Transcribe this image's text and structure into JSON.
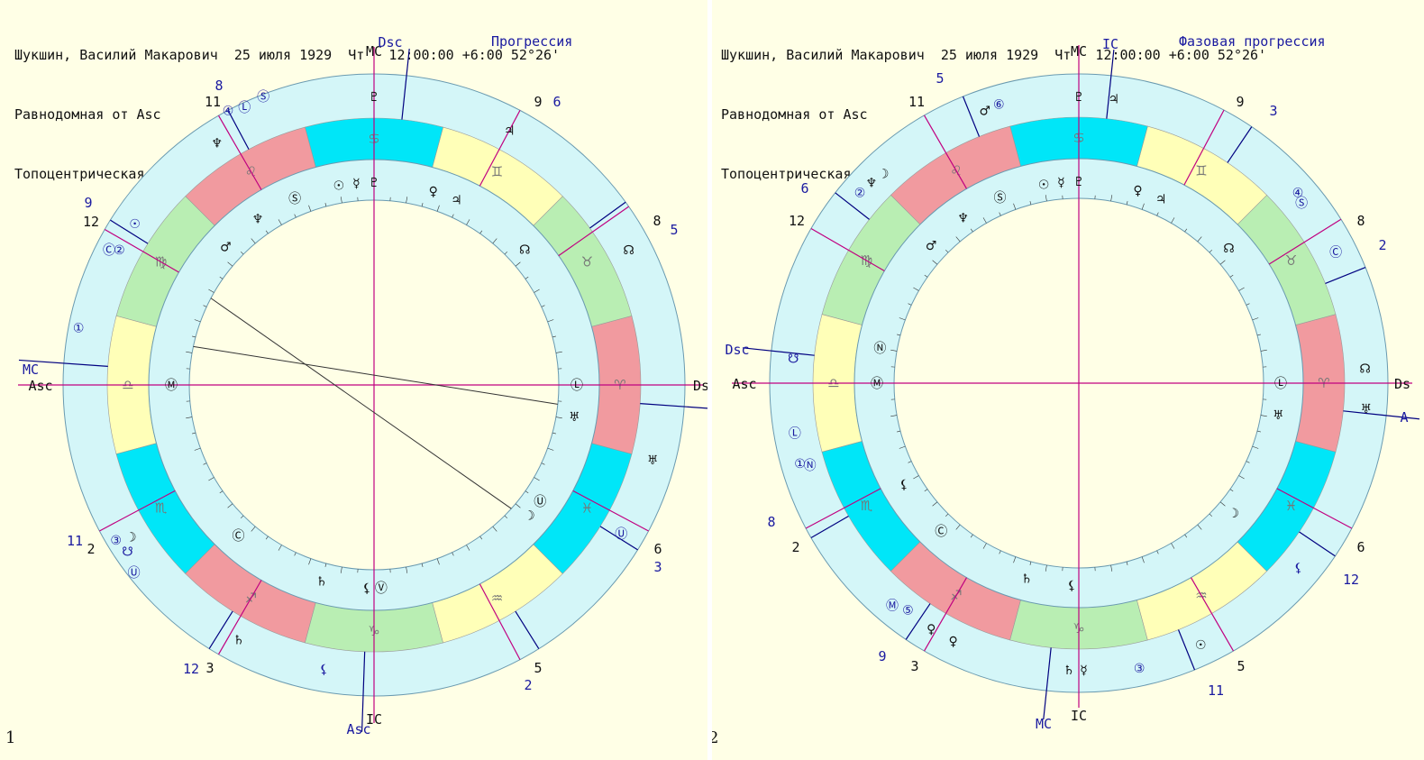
{
  "colors": {
    "background": "#ffffe6",
    "ring": "#d4f6f8",
    "fire": "#f19a9f",
    "earth": "#b9eeb3",
    "air": "#ffffb8",
    "water": "#00e6f8",
    "line": "#000080",
    "house": "#c00080",
    "label_black": "#111111",
    "label_blue": "#1a1aa0"
  },
  "panels": [
    {
      "number": "1",
      "title": "Прогрессия",
      "header": {
        "line1": "Шукшин, Василий Макарович  25 июля 1929  Чт   12:00:00 +6:00 52°26'",
        "line2": "Равнодомная от Asc",
        "line3": "Топоцентрическая"
      },
      "zodiac_signs": [
        "♈",
        "♉",
        "♊",
        "♋",
        "♌",
        "♍",
        "♎",
        "♏",
        "♐",
        "♑",
        "♒",
        "♓"
      ],
      "sign_order_from_aries": "fire earth air water",
      "angle_labels": [
        "Asc",
        "Ds",
        "MC",
        "IC",
        "Dsc",
        "Asc",
        "MC"
      ],
      "inner_houses": [
        "12",
        "11",
        "9",
        "8",
        "6",
        "5",
        "3",
        "2"
      ],
      "outer_houses": [
        "8",
        "9",
        "6",
        "5",
        "3",
        "2",
        "12",
        "11"
      ],
      "planets_inner": [
        "♇",
        "☉",
        "☿",
        "Ⓢ",
        "♆",
        "♂",
        "Ⓜ",
        "♀",
        "♃",
        "☊",
        "Ⓛ",
        "♅",
        "Ⓤ",
        "☽",
        "♄",
        "⚸",
        "Ⓥ",
        "Ⓒ",
        "♆"
      ],
      "planets_outer": [
        "♇",
        "④",
        "Ⓛ",
        "Ⓢ",
        "♀",
        "♆",
        "①",
        "☿",
        "♂",
        "Ⓒ",
        "☉",
        "②",
        "Ⓜ",
        "♃",
        "☊",
        "♅",
        "Ⓤ",
        "☋",
        "③",
        "☽",
        "Ⓥ",
        "♄",
        "⚸"
      ]
    },
    {
      "number": "2",
      "title": "Фазовая прогрессия",
      "header": {
        "line1": "Шукшин, Василий Макарович  25 июля 1929  Чт   12:00:00 +6:00 52°26'",
        "line2": "Равнодомная от Asc",
        "line3": "Топоцентрическая"
      },
      "zodiac_signs": [
        "♈",
        "♉",
        "♊",
        "♋",
        "♌",
        "♍",
        "♎",
        "♏",
        "♐",
        "♑",
        "♒",
        "♓"
      ],
      "angle_labels": [
        "Asc",
        "Ds",
        "MC",
        "IC",
        "IC",
        "MC",
        "Dsc",
        "A"
      ],
      "inner_houses": [
        "11",
        "9",
        "12",
        "8",
        "6",
        "5",
        "3",
        "2"
      ],
      "outer_houses": [
        "5",
        "3",
        "6",
        "2",
        "12",
        "11",
        "9",
        "8"
      ],
      "planets_inner": [
        "♇",
        "☉",
        "☿",
        "Ⓢ",
        "♆",
        "♂",
        "Ⓜ",
        "Ⓝ",
        "⚸",
        "Ⓒ",
        "♄",
        "⚸",
        "♀",
        "♃",
        "☊",
        "Ⓛ",
        "♅",
        "☽"
      ],
      "planets_outer": [
        "♂",
        "⑥",
        "②",
        "♆",
        "☽",
        "④",
        "Ⓢ",
        "Ⓒ",
        "☋",
        "①",
        "Ⓝ",
        "Ⓛ",
        "Ⓜ",
        "⑤",
        "☊",
        "♅",
        "♀",
        "☉",
        "③",
        "⚸",
        "♀",
        "♃",
        "♄",
        "☿",
        "⚸"
      ]
    }
  ]
}
